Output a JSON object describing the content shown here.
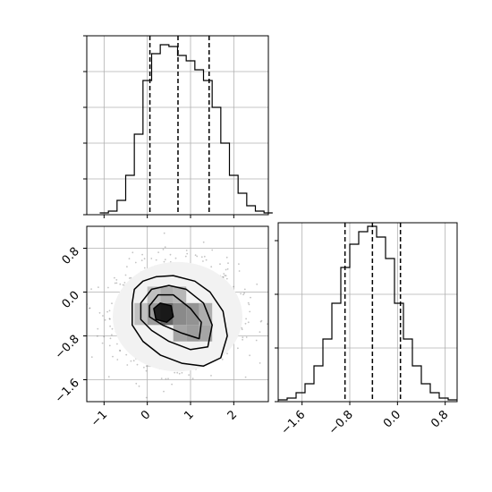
{
  "chart_data": [
    {
      "type": "histogram",
      "panel": "top-left",
      "variable": "x",
      "bins": [
        -1.1,
        -0.9,
        -0.7,
        -0.5,
        -0.3,
        -0.1,
        0.1,
        0.3,
        0.5,
        0.7,
        0.9,
        1.1,
        1.3,
        1.5,
        1.7,
        1.9,
        2.1,
        2.3,
        2.5,
        2.7,
        2.9
      ],
      "counts": [
        1,
        2,
        8,
        22,
        45,
        75,
        90,
        95,
        94,
        89,
        86,
        81,
        75,
        60,
        40,
        22,
        12,
        5,
        2,
        1
      ],
      "quantile_lines": [
        0.06,
        0.71,
        1.43
      ],
      "xlim": [
        -1.4,
        2.8
      ],
      "xticks": [
        "−1",
        "0",
        "1",
        "2"
      ],
      "ylim": [
        0,
        100
      ],
      "grid": true
    },
    {
      "type": "heatmap",
      "panel": "bottom-left",
      "variables": [
        "x",
        "y"
      ],
      "xlim": [
        -1.4,
        2.8
      ],
      "ylim": [
        -2.0,
        1.2
      ],
      "xticks": [
        "−1",
        "0",
        "1",
        "2"
      ],
      "yticks": [
        "0.8",
        "0.0",
        "−0.8",
        "−1.6"
      ],
      "peak": [
        0.4,
        -0.4
      ],
      "density_cells": [
        {
          "x": [
            -0.3,
            0.0
          ],
          "y": [
            -0.6,
            -0.2
          ],
          "level": 0.35
        },
        {
          "x": [
            0.0,
            0.3
          ],
          "y": [
            -0.6,
            -0.2
          ],
          "level": 0.55
        },
        {
          "x": [
            0.3,
            0.6
          ],
          "y": [
            -0.6,
            -0.2
          ],
          "level": 0.85
        },
        {
          "x": [
            0.6,
            0.9
          ],
          "y": [
            -0.6,
            -0.2
          ],
          "level": 0.65
        },
        {
          "x": [
            0.9,
            1.2
          ],
          "y": [
            -0.6,
            -0.2
          ],
          "level": 0.6
        },
        {
          "x": [
            1.2,
            1.5
          ],
          "y": [
            -0.6,
            -0.2
          ],
          "level": 0.45
        },
        {
          "x": [
            0.6,
            0.9
          ],
          "y": [
            -0.9,
            -0.6
          ],
          "level": 0.5
        },
        {
          "x": [
            0.9,
            1.2
          ],
          "y": [
            -0.9,
            -0.6
          ],
          "level": 0.55
        },
        {
          "x": [
            1.2,
            1.5
          ],
          "y": [
            -0.9,
            -0.6
          ],
          "level": 0.5
        },
        {
          "x": [
            0.0,
            0.3
          ],
          "y": [
            -0.2,
            0.1
          ],
          "level": 0.35
        },
        {
          "x": [
            0.3,
            0.6
          ],
          "y": [
            -0.2,
            0.1
          ],
          "level": 0.45
        },
        {
          "x": [
            0.6,
            0.9
          ],
          "y": [
            -0.2,
            0.1
          ],
          "level": 0.4
        }
      ],
      "grid": true
    },
    {
      "type": "histogram",
      "panel": "bottom-right",
      "variable": "y",
      "bins": [
        -2.0,
        -1.85,
        -1.7,
        -1.55,
        -1.4,
        -1.25,
        -1.1,
        -0.95,
        -0.8,
        -0.65,
        -0.5,
        -0.35,
        -0.2,
        -0.05,
        0.1,
        0.25,
        0.4,
        0.55,
        0.7,
        0.85,
        1.0
      ],
      "counts": [
        1,
        2,
        5,
        10,
        20,
        35,
        55,
        75,
        88,
        95,
        98,
        92,
        80,
        55,
        35,
        20,
        10,
        5,
        2,
        1
      ],
      "quantile_lines": [
        -0.88,
        -0.42,
        0.05
      ],
      "xlim": [
        -2.0,
        1.0
      ],
      "xticks": [
        "−1.6",
        "−0.8",
        "0.0",
        "0.8"
      ],
      "ylim": [
        0,
        100
      ],
      "grid": true
    }
  ]
}
